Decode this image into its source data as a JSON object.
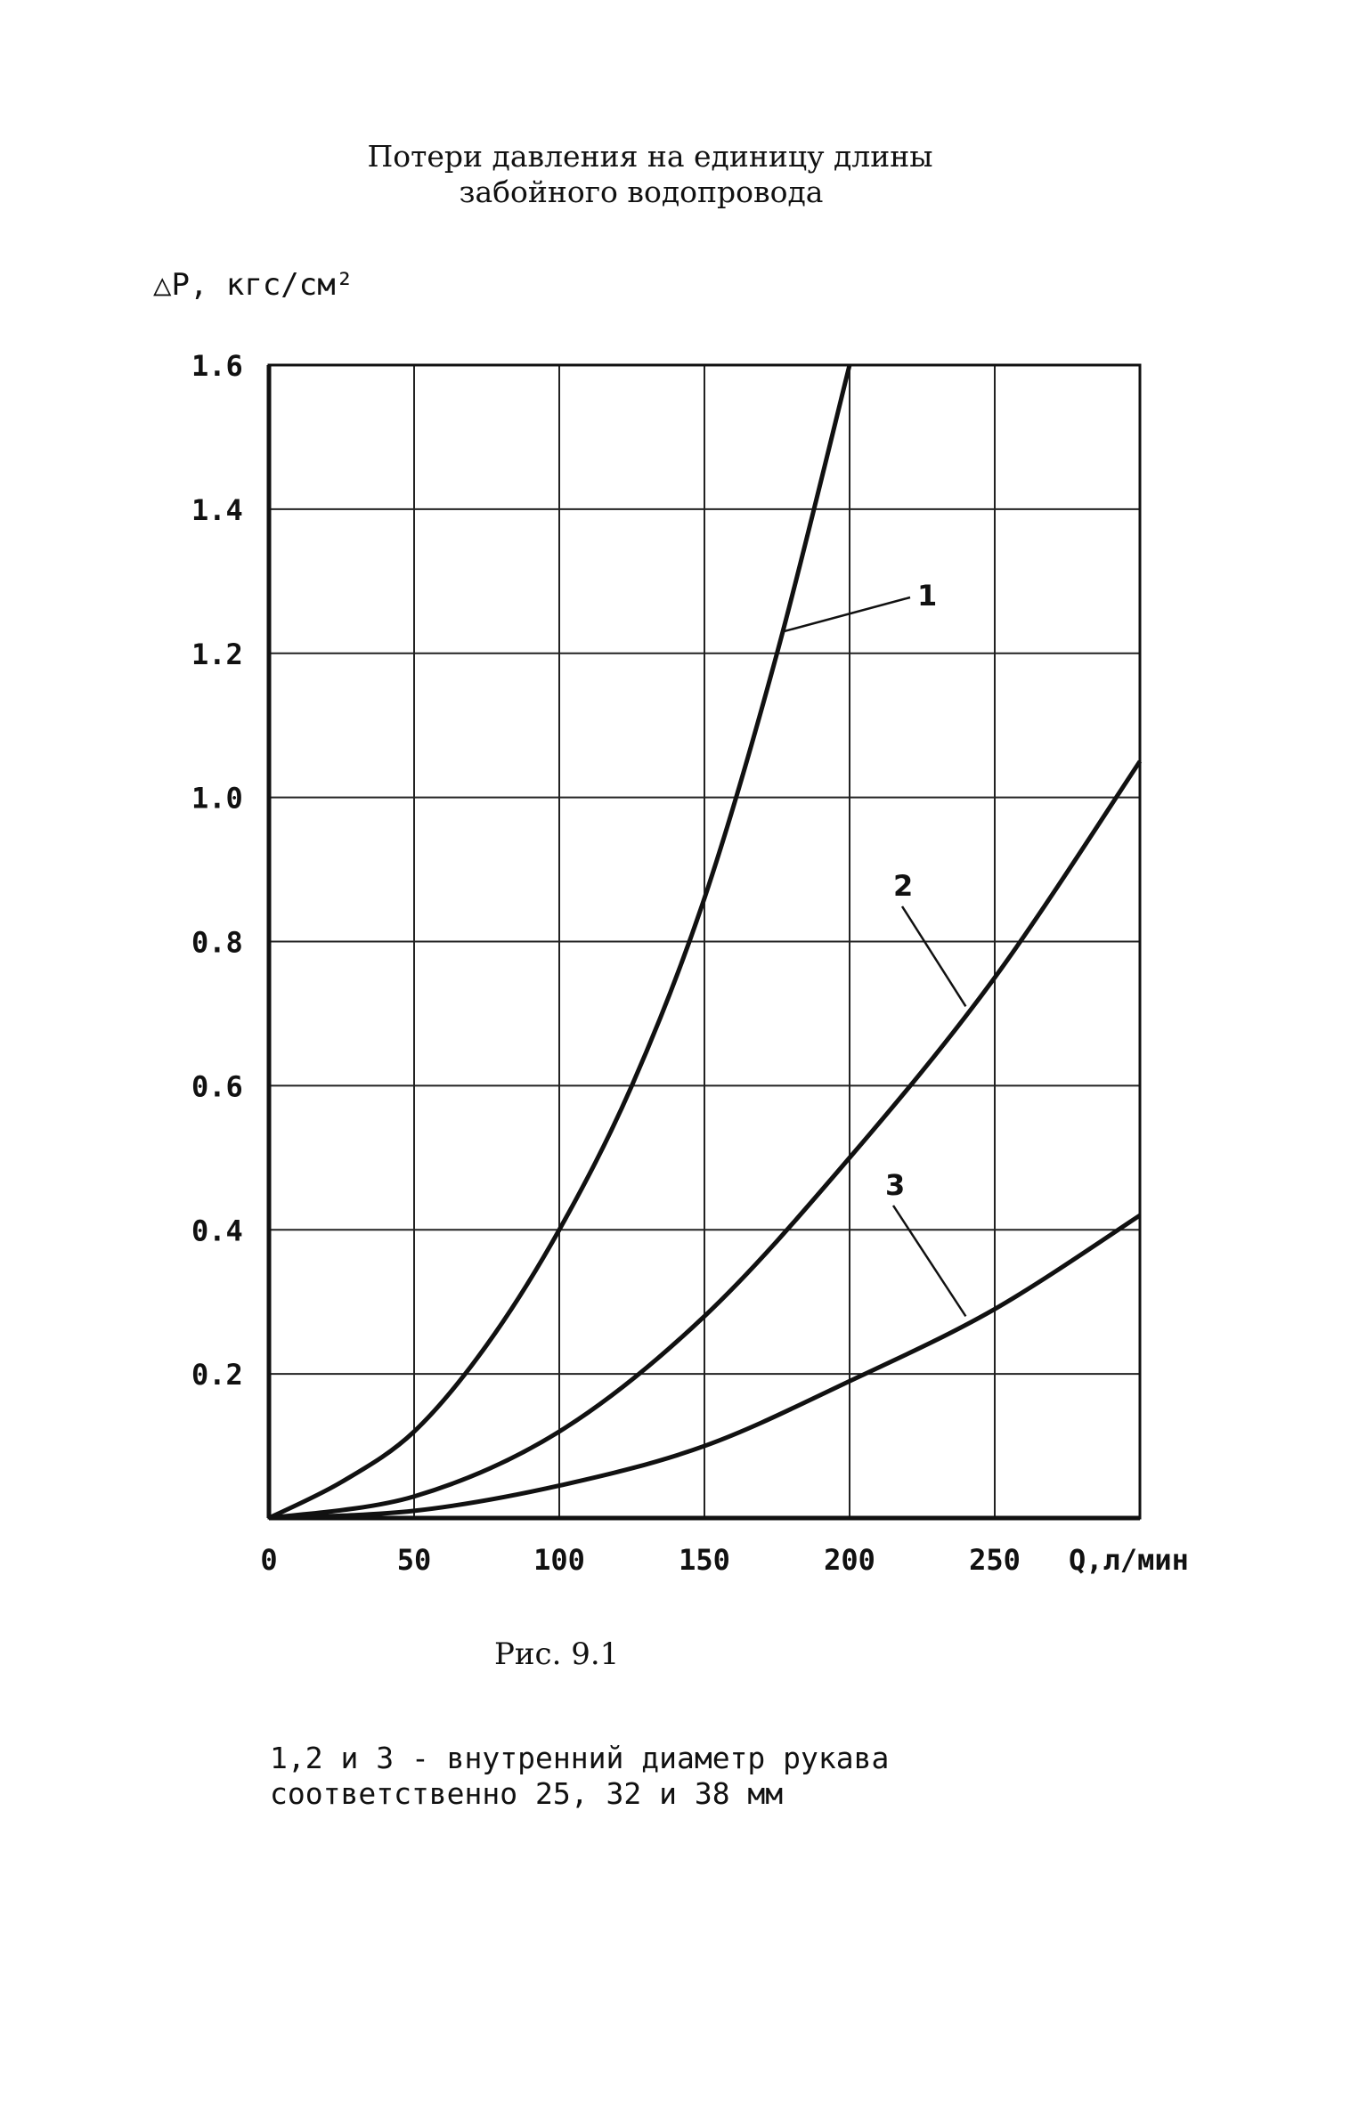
{
  "chart_data": {
    "type": "line",
    "title_line1": "Потери давления на единицу длины",
    "title_line2": "забойного водопровода",
    "ylabel": "△P, кгс/см²",
    "xlabel": "Q,л/мин",
    "xlim": [
      0,
      300
    ],
    "ylim": [
      0,
      1.6
    ],
    "x_ticks": [
      "0",
      "50",
      "100",
      "150",
      "200",
      "250"
    ],
    "y_ticks": [
      "1.6",
      "1.4",
      "1.2",
      "1.0",
      "0.8",
      "0.6",
      "0.4",
      "0.2"
    ],
    "grid": true,
    "series": [
      {
        "name": "1",
        "x": [
          0,
          25,
          50,
          75,
          100,
          125,
          150,
          175,
          200
        ],
        "y": [
          0,
          0.05,
          0.12,
          0.24,
          0.4,
          0.6,
          0.86,
          1.2,
          1.6
        ]
      },
      {
        "name": "2",
        "x": [
          0,
          50,
          100,
          150,
          200,
          250,
          300
        ],
        "y": [
          0,
          0.03,
          0.12,
          0.28,
          0.5,
          0.75,
          1.05
        ]
      },
      {
        "name": "3",
        "x": [
          0,
          50,
          100,
          150,
          200,
          250,
          300
        ],
        "y": [
          0,
          0.01,
          0.045,
          0.1,
          0.19,
          0.29,
          0.42
        ]
      }
    ]
  },
  "caption": "Рис. 9.1",
  "note_line1": "1,2 и 3 - внутренний диаметр рукава",
  "note_line2": "соответственно 25, 32 и 38 мм"
}
